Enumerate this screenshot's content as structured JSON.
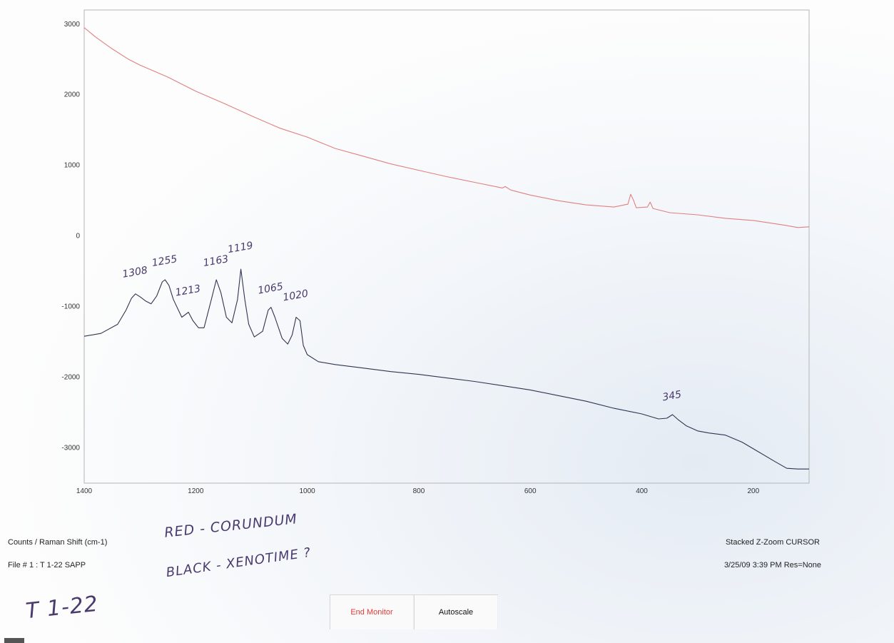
{
  "chart_data": {
    "type": "line",
    "xlim": [
      1400,
      100
    ],
    "ylim": [
      -3500,
      3200
    ],
    "x_ticks": [
      1400,
      1200,
      1000,
      800,
      600,
      400,
      200
    ],
    "y_ticks": [
      3000,
      2000,
      1000,
      0,
      -1000,
      -2000,
      -3000
    ],
    "grid": false,
    "series": [
      {
        "color": "#e08080",
        "points": [
          [
            1400,
            2950
          ],
          [
            1380,
            2820
          ],
          [
            1350,
            2650
          ],
          [
            1320,
            2500
          ],
          [
            1300,
            2420
          ],
          [
            1250,
            2250
          ],
          [
            1200,
            2050
          ],
          [
            1150,
            1880
          ],
          [
            1100,
            1700
          ],
          [
            1050,
            1530
          ],
          [
            1000,
            1400
          ],
          [
            950,
            1240
          ],
          [
            900,
            1130
          ],
          [
            850,
            1020
          ],
          [
            800,
            930
          ],
          [
            750,
            840
          ],
          [
            700,
            760
          ],
          [
            650,
            680
          ],
          [
            645,
            700
          ],
          [
            635,
            650
          ],
          [
            600,
            580
          ],
          [
            550,
            500
          ],
          [
            500,
            440
          ],
          [
            450,
            410
          ],
          [
            425,
            450
          ],
          [
            420,
            590
          ],
          [
            415,
            510
          ],
          [
            410,
            400
          ],
          [
            390,
            410
          ],
          [
            385,
            480
          ],
          [
            380,
            390
          ],
          [
            350,
            330
          ],
          [
            300,
            300
          ],
          [
            250,
            250
          ],
          [
            200,
            220
          ],
          [
            150,
            160
          ],
          [
            120,
            120
          ],
          [
            100,
            130
          ]
        ]
      },
      {
        "color": "#2f3550",
        "points": [
          [
            1400,
            -1420
          ],
          [
            1370,
            -1380
          ],
          [
            1340,
            -1250
          ],
          [
            1325,
            -1050
          ],
          [
            1315,
            -880
          ],
          [
            1308,
            -820
          ],
          [
            1300,
            -860
          ],
          [
            1290,
            -920
          ],
          [
            1280,
            -960
          ],
          [
            1270,
            -850
          ],
          [
            1260,
            -650
          ],
          [
            1255,
            -620
          ],
          [
            1248,
            -700
          ],
          [
            1240,
            -900
          ],
          [
            1225,
            -1150
          ],
          [
            1213,
            -1080
          ],
          [
            1205,
            -1200
          ],
          [
            1195,
            -1300
          ],
          [
            1185,
            -1300
          ],
          [
            1172,
            -900
          ],
          [
            1163,
            -620
          ],
          [
            1155,
            -800
          ],
          [
            1145,
            -1150
          ],
          [
            1135,
            -1230
          ],
          [
            1125,
            -900
          ],
          [
            1119,
            -470
          ],
          [
            1112,
            -900
          ],
          [
            1105,
            -1250
          ],
          [
            1095,
            -1430
          ],
          [
            1080,
            -1350
          ],
          [
            1070,
            -1050
          ],
          [
            1065,
            -1010
          ],
          [
            1058,
            -1150
          ],
          [
            1045,
            -1450
          ],
          [
            1035,
            -1530
          ],
          [
            1027,
            -1400
          ],
          [
            1020,
            -1150
          ],
          [
            1013,
            -1200
          ],
          [
            1007,
            -1550
          ],
          [
            1000,
            -1680
          ],
          [
            980,
            -1780
          ],
          [
            950,
            -1820
          ],
          [
            900,
            -1870
          ],
          [
            850,
            -1920
          ],
          [
            800,
            -1960
          ],
          [
            750,
            -2010
          ],
          [
            700,
            -2060
          ],
          [
            650,
            -2120
          ],
          [
            600,
            -2180
          ],
          [
            550,
            -2260
          ],
          [
            500,
            -2340
          ],
          [
            450,
            -2440
          ],
          [
            400,
            -2520
          ],
          [
            370,
            -2590
          ],
          [
            355,
            -2580
          ],
          [
            345,
            -2530
          ],
          [
            335,
            -2600
          ],
          [
            320,
            -2690
          ],
          [
            300,
            -2760
          ],
          [
            280,
            -2790
          ],
          [
            250,
            -2820
          ],
          [
            220,
            -2920
          ],
          [
            190,
            -3060
          ],
          [
            160,
            -3200
          ],
          [
            140,
            -3290
          ],
          [
            120,
            -3300
          ],
          [
            100,
            -3300
          ]
        ]
      }
    ],
    "peak_annotations": [
      "1308",
      "1255",
      "1213",
      "1163",
      "1119",
      "1065",
      "1020",
      "345"
    ],
    "peak_positions": [
      1308,
      1255,
      1213,
      1163,
      1119,
      1065,
      1020,
      345
    ]
  },
  "footer": {
    "axis_units": "Counts / Raman Shift (cm-1)",
    "file_label": "File # 1 : T 1-22 SAPP",
    "mode_label": "Stacked Z-Zoom CURSOR",
    "timestamp": "3/25/09  3:39 PM  Res=None"
  },
  "handwriting": {
    "note_red": "RED - CORUNDUM",
    "note_black": "BLACK - XENOTIME ?",
    "sample_id": "T 1-22"
  },
  "buttons": {
    "end_monitor": "End Monitor",
    "autoscale": "Autoscale"
  },
  "colors": {
    "red_series": "#e08080",
    "black_series": "#2f3550",
    "end_monitor_text": "#e53935"
  }
}
